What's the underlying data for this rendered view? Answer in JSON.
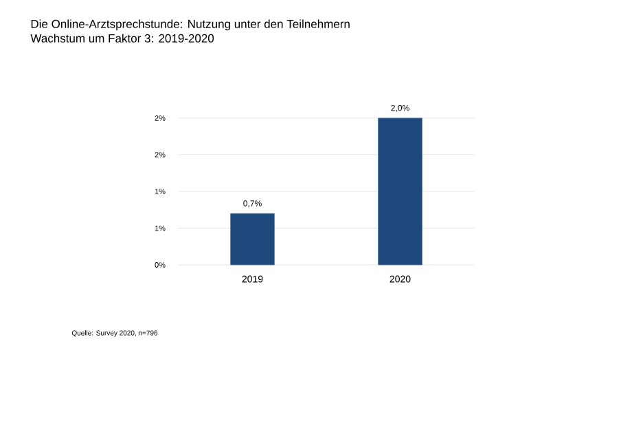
{
  "chart_data": {
    "type": "bar",
    "title": "Die Online-Arztsprechstunde: Nutzung unter den Teilnehmern",
    "subtitle": "Wachstum um Faktor 3: 2019-2020",
    "categories": [
      "2019",
      "2020"
    ],
    "values": [
      0.7,
      2.0
    ],
    "value_labels": [
      "0,7%",
      "2,0%"
    ],
    "color": "#1f497d",
    "ylim": [
      0,
      2
    ],
    "yticks": [
      {
        "value": 0,
        "label": "0%"
      },
      {
        "value": 0.5,
        "label": "1%"
      },
      {
        "value": 1,
        "label": "1%"
      },
      {
        "value": 1.5,
        "label": "2%"
      },
      {
        "value": 2,
        "label": "2%"
      }
    ],
    "grid": "y",
    "annotations": [
      "Quelle: Survey 2020, n=796"
    ]
  }
}
